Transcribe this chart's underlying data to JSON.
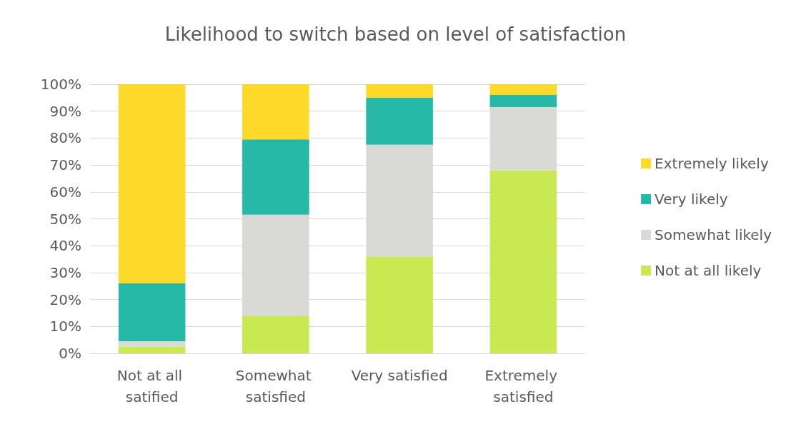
{
  "chart_data": {
    "type": "bar",
    "title": "Likelihood to switch based on level of satisfaction",
    "stacked": true,
    "categories": [
      "Not at all satified",
      "Somewhat satisfied",
      "Very satisfied",
      "Extremely satisfied"
    ],
    "series": [
      {
        "name": "Not at all likely",
        "color": "#c9e952",
        "values": [
          2.5,
          14,
          36,
          68
        ]
      },
      {
        "name": "Somewhat likely",
        "color": "#d9d9d6",
        "values": [
          2,
          37.5,
          41.5,
          23.5
        ]
      },
      {
        "name": "Very likely",
        "color": "#26b9a7",
        "values": [
          21.5,
          28,
          17.5,
          4.5
        ]
      },
      {
        "name": "Extremely likely",
        "color": "#fdd92a",
        "values": [
          74,
          20.5,
          5,
          4
        ]
      }
    ],
    "ylim": [
      0,
      100
    ],
    "yticks": [
      {
        "value": 0,
        "label": "0%"
      },
      {
        "value": 10,
        "label": "10%"
      },
      {
        "value": 20,
        "label": "20%"
      },
      {
        "value": 30,
        "label": "30%"
      },
      {
        "value": 40,
        "label": "40%"
      },
      {
        "value": 50,
        "label": "50%"
      },
      {
        "value": 60,
        "label": "60%"
      },
      {
        "value": 70,
        "label": "70%"
      },
      {
        "value": 80,
        "label": "80%"
      },
      {
        "value": 90,
        "label": "90%"
      },
      {
        "value": 100,
        "label": "100%"
      }
    ],
    "grid": "y",
    "legend": "right"
  }
}
